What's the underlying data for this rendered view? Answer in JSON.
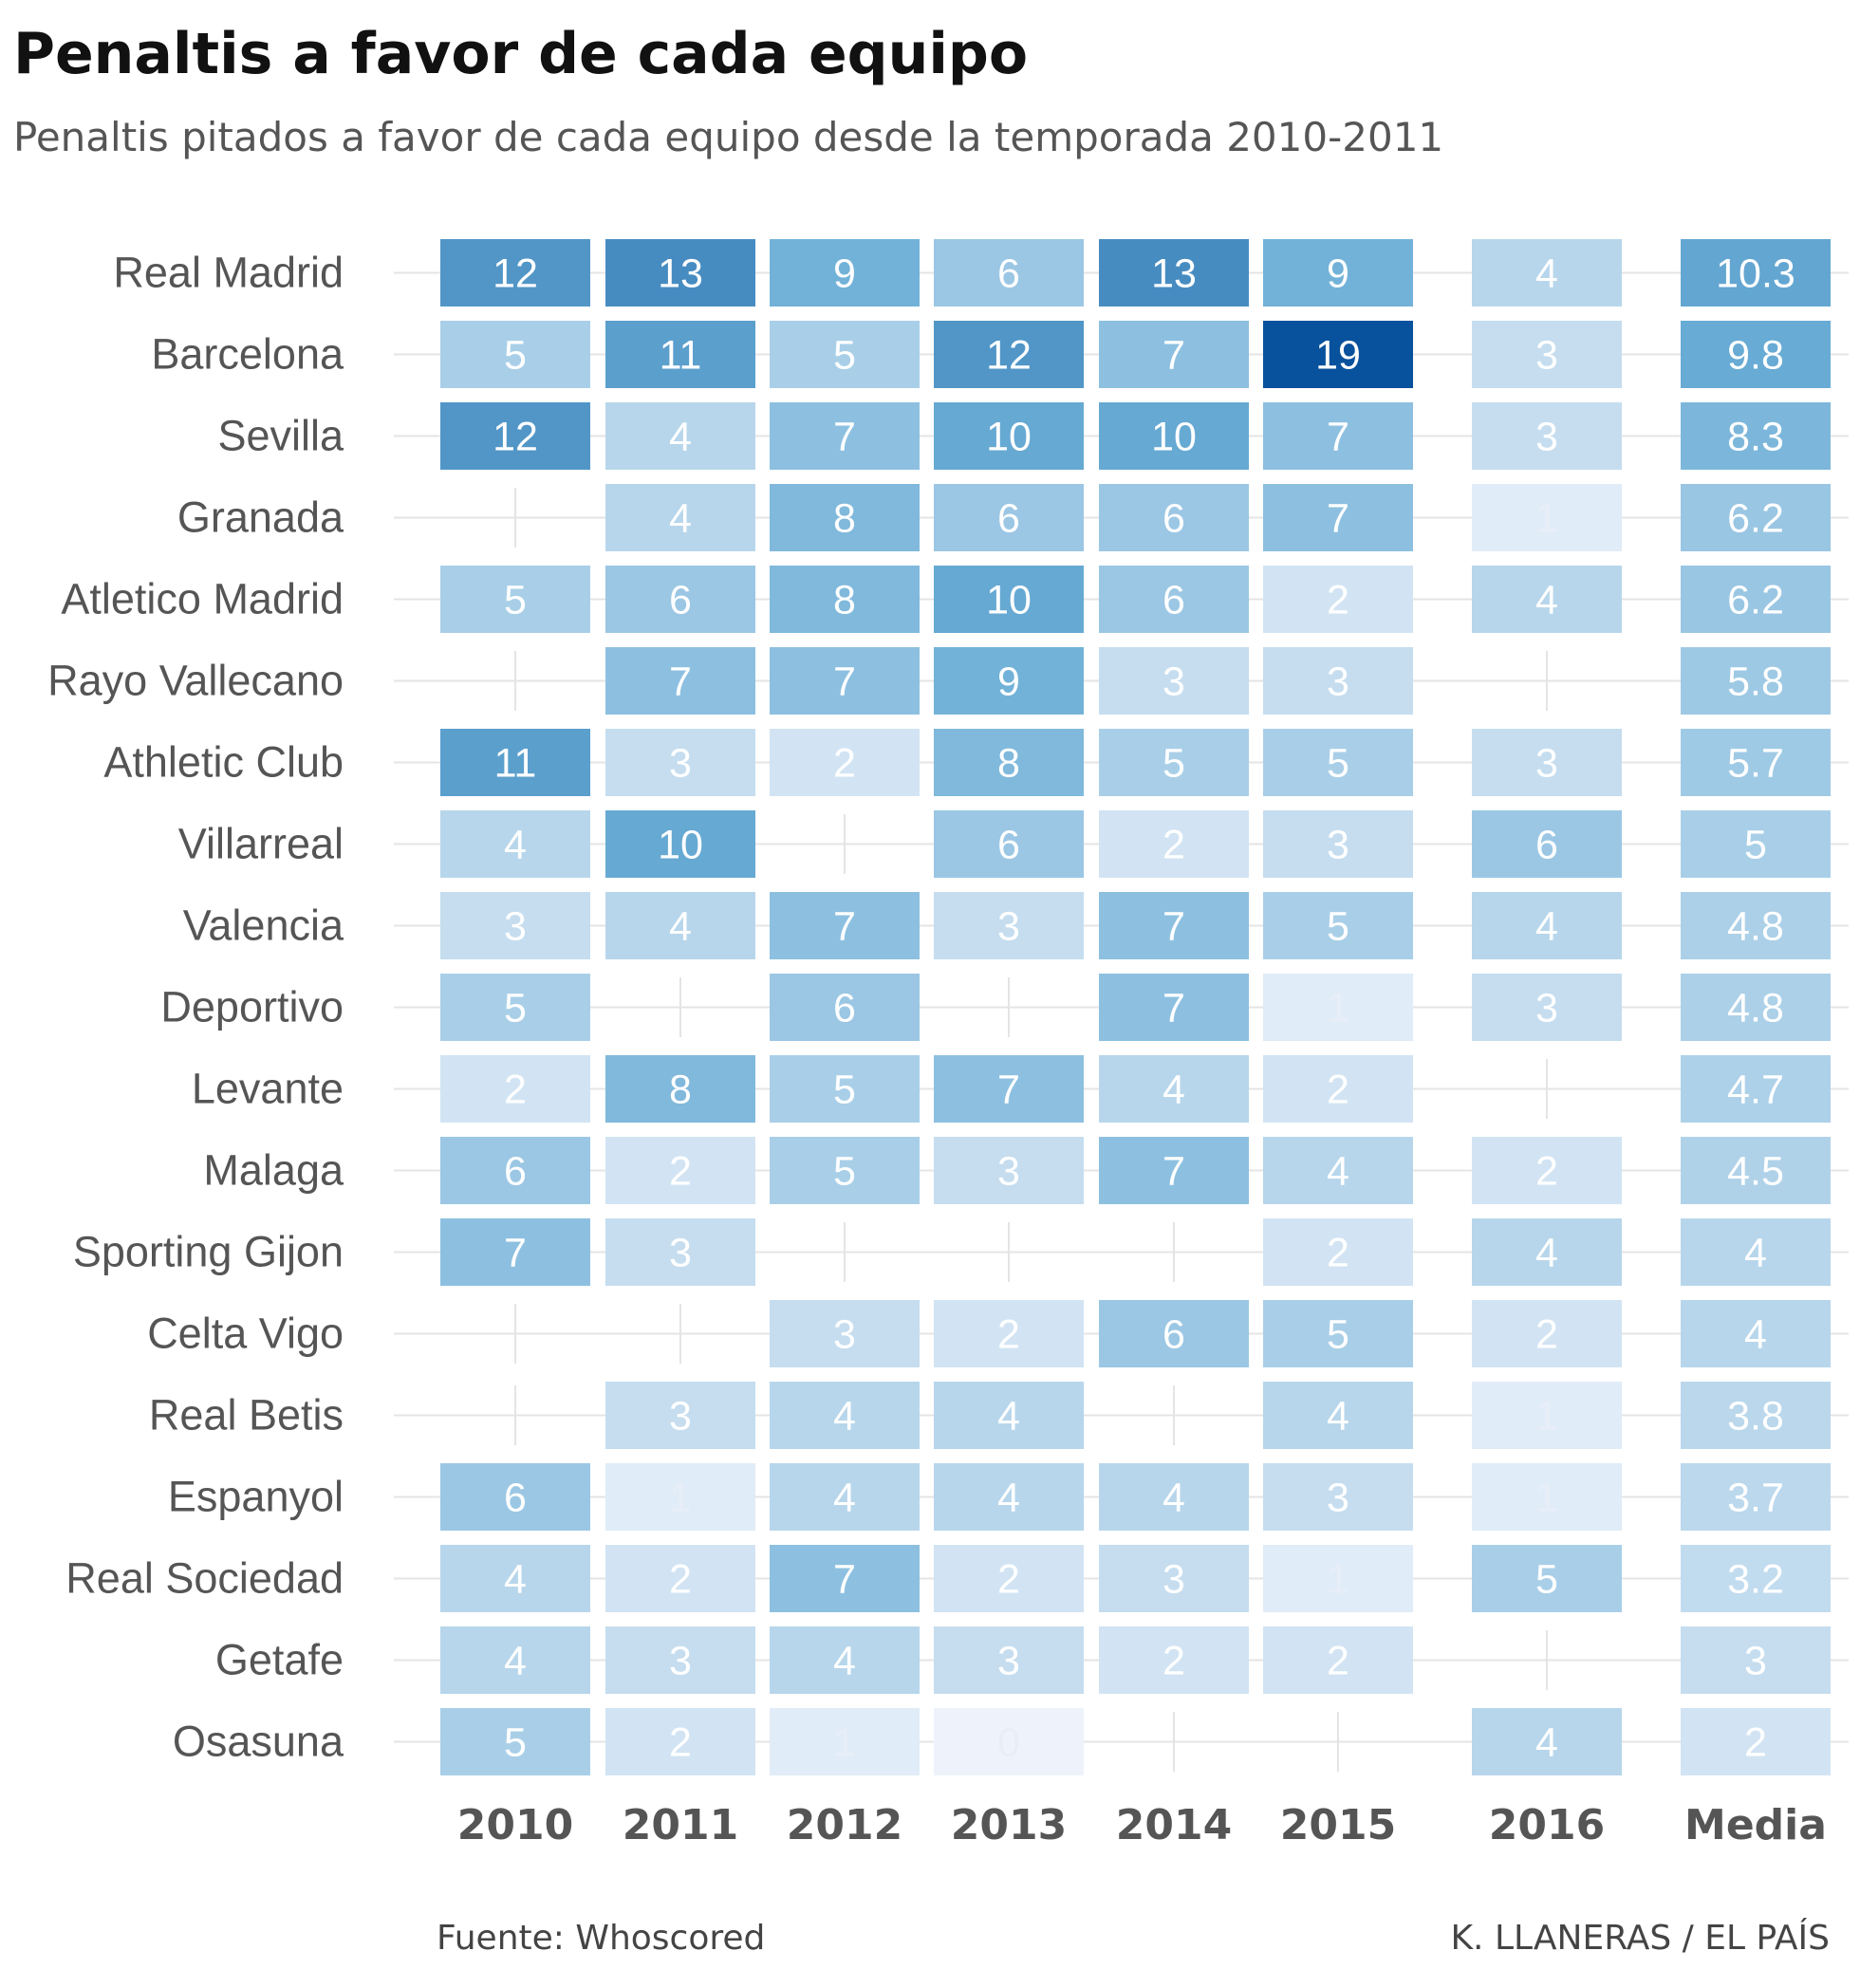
{
  "title": "Penaltis a favor de cada equipo",
  "subtitle": "Penaltis pitados a favor de cada equipo desde la temporada 2010-2011",
  "source": "Fuente: Whoscored",
  "credit": "K. LLANERAS  /  EL PAÍS",
  "colors": {
    "scale_light": "#eef3fb",
    "scale_dark": "#08519c",
    "gridline": "#e4e4e4",
    "team_label": "#555555",
    "column_label": "#555555"
  },
  "chart_data": {
    "type": "heatmap",
    "title": "Penaltis a favor de cada equipo",
    "subtitle": "Penaltis pitados a favor de cada equipo desde la temporada 2010-2011",
    "columns": [
      "2010",
      "2011",
      "2012",
      "2013",
      "2014",
      "2015",
      "2016",
      "Media"
    ],
    "rows": [
      "Real Madrid",
      "Barcelona",
      "Sevilla",
      "Granada",
      "Atletico Madrid",
      "Rayo Vallecano",
      "Athletic Club",
      "Villarreal",
      "Valencia",
      "Deportivo",
      "Levante",
      "Malaga",
      "Sporting Gijon",
      "Celta Vigo",
      "Real Betis",
      "Espanyol",
      "Real Sociedad",
      "Getafe",
      "Osasuna"
    ],
    "values": [
      [
        12,
        13,
        9,
        6,
        13,
        9,
        4,
        10.3
      ],
      [
        5,
        11,
        5,
        12,
        7,
        19,
        3,
        9.8
      ],
      [
        12,
        4,
        7,
        10,
        10,
        7,
        3,
        8.3
      ],
      [
        null,
        4,
        8,
        6,
        6,
        7,
        1,
        6.2
      ],
      [
        5,
        6,
        8,
        10,
        6,
        2,
        4,
        6.2
      ],
      [
        null,
        7,
        7,
        9,
        3,
        3,
        null,
        5.8
      ],
      [
        11,
        3,
        2,
        8,
        5,
        5,
        3,
        5.7
      ],
      [
        4,
        10,
        null,
        6,
        2,
        3,
        6,
        5
      ],
      [
        3,
        4,
        7,
        3,
        7,
        5,
        4,
        4.8
      ],
      [
        5,
        null,
        6,
        null,
        7,
        1,
        3,
        4.8
      ],
      [
        2,
        8,
        5,
        7,
        4,
        2,
        null,
        4.7
      ],
      [
        6,
        2,
        5,
        3,
        7,
        4,
        2,
        4.5
      ],
      [
        7,
        3,
        null,
        null,
        null,
        2,
        4,
        4
      ],
      [
        null,
        null,
        3,
        2,
        6,
        5,
        2,
        4
      ],
      [
        null,
        3,
        4,
        4,
        null,
        4,
        1,
        3.8
      ],
      [
        6,
        1,
        4,
        4,
        4,
        3,
        1,
        3.7
      ],
      [
        4,
        2,
        7,
        2,
        3,
        1,
        5,
        3.2
      ],
      [
        4,
        3,
        4,
        3,
        2,
        2,
        null,
        3
      ],
      [
        5,
        2,
        1,
        0,
        null,
        null,
        4,
        2
      ]
    ],
    "value_range": [
      0,
      19
    ],
    "source": "Fuente: Whoscored",
    "credit": "K. LLANERAS  /  EL PAÍS"
  }
}
